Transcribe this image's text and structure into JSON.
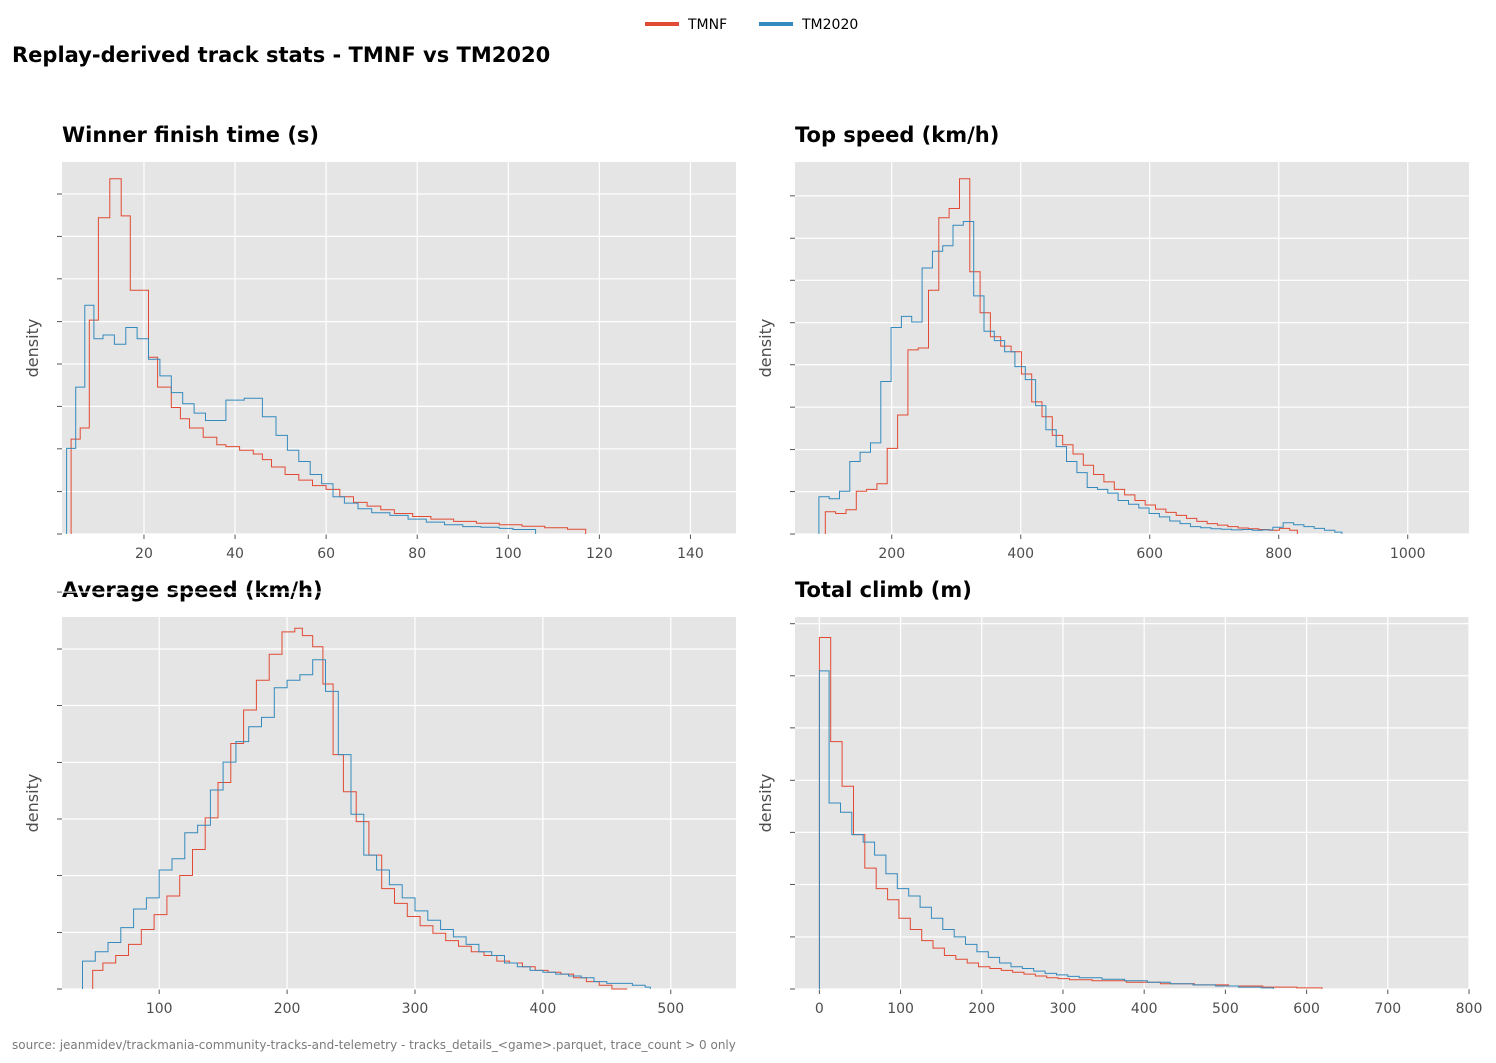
{
  "title": "Replay-derived track stats  -  TMNF vs TM2020",
  "source_note": "source: jeanmidev/trackmania-community-tracks-and-telemetry  -  tracks_details_<game>.parquet, trace_count > 0 only",
  "colors": {
    "TMNF": "#e24a33",
    "TM2020": "#348abd",
    "panel_bg": "#e5e5e5",
    "grid": "#ffffff"
  },
  "legend": {
    "placement": "top-center",
    "items": [
      {
        "label": "TMNF",
        "color": "#e24a33"
      },
      {
        "label": "TM2020",
        "color": "#348abd"
      }
    ]
  },
  "chart_data": [
    {
      "id": "finish_time",
      "type": "histogram",
      "title": "Winner finish time (s)",
      "ylabel": "density",
      "xlim": [
        2,
        150
      ],
      "xticks": [
        20,
        40,
        60,
        80,
        100,
        120,
        140
      ],
      "ylim": [
        0,
        1
      ],
      "yticks": [
        0,
        0.114,
        0.229,
        0.343,
        0.457,
        0.571,
        0.686,
        0.8,
        0.914
      ],
      "grid": true,
      "series": [
        {
          "name": "TMNF",
          "x": [
            4,
            6,
            8,
            10,
            12.5,
            15,
            17,
            21,
            23,
            26,
            28,
            30,
            33,
            36,
            38,
            41,
            44,
            46,
            48,
            51,
            54,
            57,
            60,
            63,
            66,
            69,
            72,
            75,
            79,
            83,
            88,
            93,
            98,
            103,
            108,
            113,
            117
          ],
          "y": [
            0.255,
            0.285,
            0.575,
            0.85,
            0.955,
            0.855,
            0.655,
            0.475,
            0.395,
            0.34,
            0.31,
            0.285,
            0.26,
            0.24,
            0.235,
            0.225,
            0.215,
            0.2,
            0.18,
            0.16,
            0.145,
            0.13,
            0.12,
            0.1,
            0.085,
            0.075,
            0.065,
            0.055,
            0.047,
            0.04,
            0.034,
            0.029,
            0.025,
            0.021,
            0.017,
            0.013,
            0.01
          ]
        },
        {
          "name": "TM2020",
          "x": [
            3,
            5,
            7,
            9,
            11,
            13.5,
            16,
            18.5,
            21,
            23.5,
            26,
            28.5,
            31,
            33.5,
            38,
            42,
            46,
            49,
            51.5,
            54,
            56.5,
            59,
            61.5,
            64,
            67,
            70,
            74,
            78,
            82,
            86,
            90,
            94,
            98,
            101,
            106
          ],
          "y": [
            0.23,
            0.395,
            0.615,
            0.525,
            0.535,
            0.51,
            0.555,
            0.525,
            0.47,
            0.425,
            0.38,
            0.35,
            0.325,
            0.305,
            0.36,
            0.365,
            0.315,
            0.265,
            0.225,
            0.195,
            0.16,
            0.135,
            0.1,
            0.083,
            0.068,
            0.057,
            0.05,
            0.04,
            0.032,
            0.025,
            0.02,
            0.018,
            0.015,
            0.012,
            0.008
          ]
        }
      ]
    },
    {
      "id": "top_speed",
      "type": "histogram",
      "title": "Top speed (km/h)",
      "ylabel": "density",
      "xlim": [
        50,
        1095
      ],
      "xticks": [
        200,
        400,
        600,
        800,
        1000
      ],
      "ylim": [
        0,
        1
      ],
      "yticks": [
        0,
        0.114,
        0.227,
        0.341,
        0.455,
        0.568,
        0.682,
        0.795,
        0.909
      ],
      "grid": true,
      "series": [
        {
          "name": "TMNF",
          "x": [
            97,
            113,
            129,
            145,
            161,
            177,
            193,
            209,
            225,
            241,
            257,
            273,
            289,
            305,
            321,
            337,
            353,
            369,
            385,
            401,
            417,
            433,
            449,
            465,
            481,
            497,
            513,
            529,
            545,
            561,
            577,
            593,
            609,
            625,
            641,
            657,
            673,
            689,
            705,
            721,
            737,
            753,
            769,
            785,
            801,
            817,
            829
          ],
          "y": [
            0.06,
            0.055,
            0.065,
            0.115,
            0.12,
            0.135,
            0.23,
            0.32,
            0.495,
            0.5,
            0.655,
            0.85,
            0.875,
            0.955,
            0.705,
            0.595,
            0.53,
            0.505,
            0.49,
            0.43,
            0.355,
            0.315,
            0.265,
            0.24,
            0.215,
            0.185,
            0.16,
            0.14,
            0.12,
            0.105,
            0.09,
            0.078,
            0.067,
            0.058,
            0.05,
            0.042,
            0.034,
            0.028,
            0.024,
            0.02,
            0.016,
            0.014,
            0.012,
            0.01,
            0.015,
            0.01,
            0
          ]
        },
        {
          "name": "TM2020",
          "x": [
            87,
            103,
            119,
            135,
            151,
            167,
            183,
            199,
            215,
            231,
            247,
            263,
            279,
            295,
            311,
            327,
            343,
            359,
            375,
            391,
            407,
            423,
            439,
            455,
            471,
            487,
            503,
            519,
            535,
            551,
            567,
            583,
            599,
            615,
            631,
            647,
            663,
            679,
            695,
            711,
            727,
            743,
            759,
            775,
            791,
            807,
            823,
            839,
            855,
            871,
            887,
            898
          ],
          "y": [
            0.1,
            0.095,
            0.115,
            0.195,
            0.22,
            0.245,
            0.41,
            0.555,
            0.585,
            0.57,
            0.715,
            0.76,
            0.775,
            0.83,
            0.84,
            0.64,
            0.545,
            0.52,
            0.49,
            0.45,
            0.415,
            0.345,
            0.28,
            0.235,
            0.195,
            0.165,
            0.125,
            0.12,
            0.11,
            0.09,
            0.08,
            0.07,
            0.055,
            0.046,
            0.035,
            0.028,
            0.02,
            0.017,
            0.014,
            0.013,
            0.011,
            0.012,
            0.01,
            0.011,
            0.018,
            0.03,
            0.025,
            0.02,
            0.015,
            0.01,
            0.005,
            0
          ]
        }
      ]
    },
    {
      "id": "average_speed",
      "type": "histogram",
      "title": "Average speed (km/h)",
      "ylabel": "density",
      "xlim": [
        24,
        551
      ],
      "xticks": [
        100,
        200,
        300,
        400,
        500
      ],
      "ylim": [
        0,
        1
      ],
      "yticks": [
        0,
        0.152,
        0.305,
        0.457,
        0.609,
        0.762,
        0.914,
        1.067
      ],
      "grid": true,
      "series": [
        {
          "name": "TMNF",
          "x": [
            48,
            56,
            66,
            76,
            86,
            96,
            106,
            116,
            126,
            136,
            146,
            156,
            166,
            176,
            186,
            196,
            206,
            212,
            220,
            228,
            236,
            244,
            254,
            264,
            274,
            284,
            294,
            304,
            314,
            324,
            334,
            344,
            354,
            364,
            374,
            384,
            394,
            404,
            414,
            424,
            434,
            444,
            454,
            466
          ],
          "y": [
            0.05,
            0.07,
            0.09,
            0.12,
            0.16,
            0.2,
            0.25,
            0.305,
            0.375,
            0.46,
            0.555,
            0.66,
            0.75,
            0.83,
            0.9,
            0.96,
            0.97,
            0.95,
            0.92,
            0.82,
            0.63,
            0.53,
            0.45,
            0.36,
            0.27,
            0.23,
            0.195,
            0.17,
            0.15,
            0.13,
            0.115,
            0.1,
            0.09,
            0.075,
            0.07,
            0.06,
            0.05,
            0.045,
            0.04,
            0.03,
            0.02,
            0.01,
            0,
            0
          ]
        },
        {
          "name": "TM2020",
          "x": [
            40,
            50,
            60,
            70,
            80,
            90,
            100,
            110,
            120,
            130,
            140,
            150,
            160,
            170,
            180,
            190,
            200,
            210,
            220,
            230,
            240,
            250,
            260,
            270,
            280,
            290,
            300,
            310,
            320,
            330,
            340,
            350,
            360,
            370,
            380,
            390,
            400,
            410,
            420,
            430,
            440,
            450,
            460,
            470,
            480,
            484
          ],
          "y": [
            0.075,
            0.1,
            0.125,
            0.165,
            0.215,
            0.245,
            0.32,
            0.35,
            0.42,
            0.44,
            0.535,
            0.61,
            0.665,
            0.705,
            0.73,
            0.81,
            0.83,
            0.845,
            0.885,
            0.8,
            0.63,
            0.47,
            0.36,
            0.32,
            0.28,
            0.245,
            0.21,
            0.185,
            0.16,
            0.14,
            0.12,
            0.1,
            0.09,
            0.07,
            0.06,
            0.05,
            0.045,
            0.04,
            0.035,
            0.03,
            0.02,
            0.015,
            0.015,
            0.01,
            0.005,
            0
          ]
        }
      ]
    },
    {
      "id": "total_climb",
      "type": "histogram",
      "title": "Total climb (m)",
      "ylabel": "density",
      "xlim": [
        -30,
        800
      ],
      "xticks": [
        0,
        100,
        200,
        300,
        400,
        500,
        600,
        700,
        800
      ],
      "ylim": [
        0,
        1
      ],
      "yticks": [
        0,
        0.14,
        0.281,
        0.421,
        0.561,
        0.702,
        0.842,
        0.982
      ],
      "grid": true,
      "series": [
        {
          "name": "TMNF",
          "x": [
            0,
            14,
            28,
            42,
            56,
            70,
            84,
            98,
            112,
            126,
            140,
            154,
            168,
            182,
            196,
            210,
            224,
            238,
            252,
            266,
            280,
            294,
            308,
            336,
            378,
            420,
            462,
            504,
            546,
            588,
            619
          ],
          "y": [
            0.945,
            0.665,
            0.545,
            0.415,
            0.325,
            0.27,
            0.24,
            0.19,
            0.16,
            0.13,
            0.11,
            0.09,
            0.08,
            0.07,
            0.06,
            0.055,
            0.05,
            0.045,
            0.04,
            0.035,
            0.03,
            0.028,
            0.025,
            0.022,
            0.018,
            0.014,
            0.011,
            0.008,
            0.005,
            0.003,
            0
          ]
        },
        {
          "name": "TM2020",
          "x": [
            0,
            12,
            26,
            40,
            54,
            68,
            82,
            96,
            110,
            124,
            138,
            152,
            166,
            180,
            194,
            208,
            222,
            236,
            250,
            264,
            278,
            292,
            306,
            320,
            348,
            376,
            404,
            432,
            460,
            488,
            516,
            544,
            559
          ],
          "y": [
            0.855,
            0.5,
            0.475,
            0.415,
            0.395,
            0.36,
            0.31,
            0.27,
            0.25,
            0.22,
            0.19,
            0.16,
            0.14,
            0.12,
            0.1,
            0.085,
            0.07,
            0.06,
            0.055,
            0.048,
            0.042,
            0.038,
            0.034,
            0.03,
            0.026,
            0.022,
            0.018,
            0.014,
            0.011,
            0.008,
            0.005,
            0.003,
            0
          ]
        }
      ]
    }
  ]
}
